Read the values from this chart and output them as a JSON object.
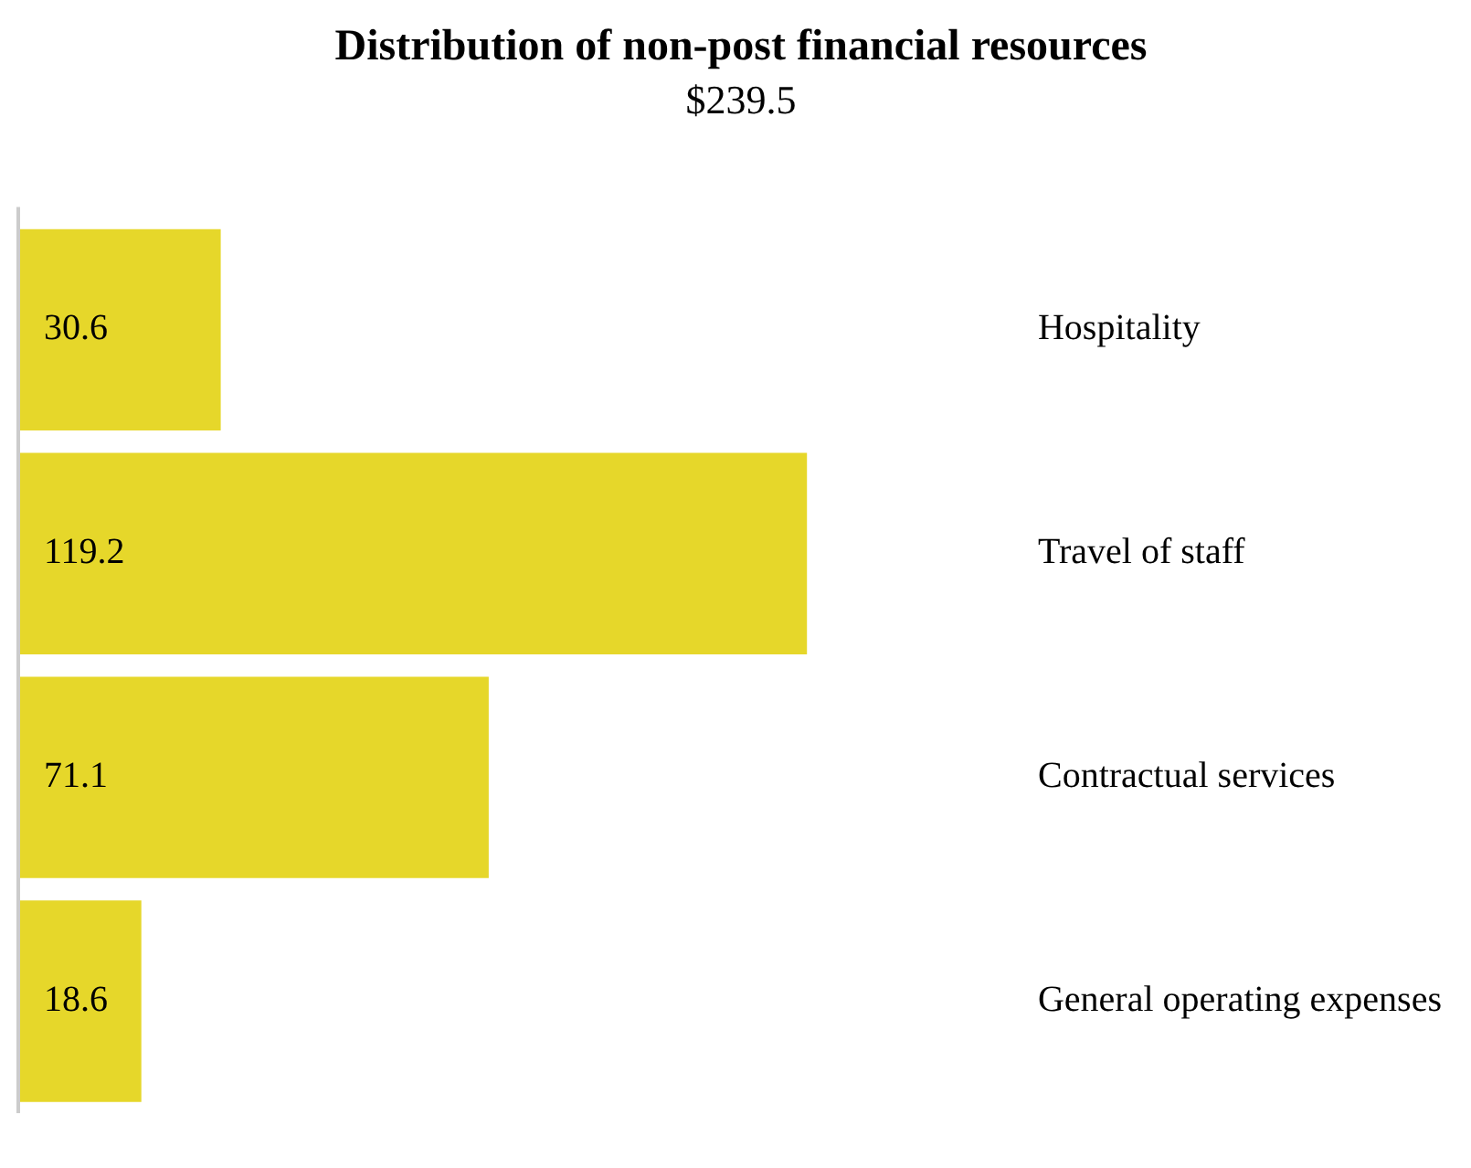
{
  "chart_data": {
    "type": "bar",
    "orientation": "horizontal",
    "title": "Distribution of non-post financial resources",
    "subtitle": "$239.5",
    "categories": [
      "Hospitality",
      "Travel of staff",
      "Contractual services",
      "General operating expenses"
    ],
    "values": [
      30.6,
      119.2,
      71.1,
      18.6
    ],
    "color": "#e6d72a",
    "data_labels": true,
    "grid": false,
    "legend": false
  }
}
